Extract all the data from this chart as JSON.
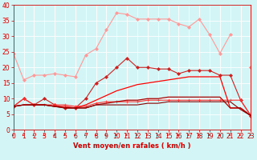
{
  "xlabel": "Vent moyen/en rafales ( km/h )",
  "x": [
    0,
    1,
    2,
    3,
    4,
    5,
    6,
    7,
    8,
    9,
    10,
    11,
    12,
    13,
    14,
    15,
    16,
    17,
    18,
    19,
    20,
    21,
    22,
    23
  ],
  "series": [
    {
      "color": "#ff9999",
      "marker": "D",
      "markersize": 2,
      "linewidth": 0.8,
      "values": [
        24.5,
        16.0,
        17.5,
        17.5,
        18.0,
        17.5,
        17.0,
        24.0,
        26.0,
        32.0,
        37.5,
        37.0,
        35.5,
        35.5,
        35.5,
        35.5,
        34.0,
        33.0,
        35.5,
        30.5,
        24.5,
        30.5,
        null,
        20.0
      ]
    },
    {
      "color": "#ffbbbb",
      "marker": null,
      "markersize": 0,
      "linewidth": 0.9,
      "values": [
        7.5,
        null,
        null,
        null,
        null,
        null,
        null,
        null,
        null,
        null,
        null,
        null,
        null,
        null,
        null,
        null,
        null,
        null,
        null,
        null,
        null,
        null,
        null,
        20.0
      ]
    },
    {
      "color": "#ff8888",
      "marker": "D",
      "markersize": 2,
      "linewidth": 0.8,
      "values": [
        null,
        null,
        null,
        null,
        null,
        null,
        null,
        null,
        null,
        null,
        null,
        null,
        null,
        null,
        null,
        null,
        null,
        null,
        null,
        null,
        null,
        null,
        null,
        20.0
      ]
    },
    {
      "color": "#cc2222",
      "marker": "D",
      "markersize": 2,
      "linewidth": 0.8,
      "values": [
        7.5,
        10.0,
        8.0,
        10.0,
        8.0,
        7.0,
        7.0,
        10.0,
        15.0,
        17.0,
        20.0,
        23.0,
        20.0,
        20.0,
        19.5,
        19.5,
        18.0,
        19.0,
        19.0,
        19.0,
        17.5,
        17.5,
        9.5,
        4.5
      ]
    },
    {
      "color": "#ff3333",
      "marker": "+",
      "markersize": 3,
      "linewidth": 0.8,
      "values": [
        7.5,
        10.0,
        8.0,
        8.0,
        8.0,
        8.0,
        7.5,
        7.5,
        8.5,
        9.0,
        9.0,
        9.0,
        9.0,
        9.5,
        9.5,
        9.5,
        9.5,
        9.5,
        9.5,
        9.5,
        9.5,
        9.5,
        9.5,
        4.5
      ]
    },
    {
      "color": "#ff0000",
      "marker": null,
      "markersize": 0,
      "linewidth": 0.9,
      "values": [
        7.5,
        8.0,
        8.0,
        8.0,
        7.5,
        7.5,
        7.0,
        8.0,
        9.5,
        11.0,
        12.5,
        13.5,
        14.5,
        15.0,
        15.5,
        16.0,
        16.5,
        17.0,
        17.0,
        17.0,
        17.0,
        7.0,
        7.0,
        4.5
      ]
    },
    {
      "color": "#aa0000",
      "marker": null,
      "markersize": 0,
      "linewidth": 0.9,
      "values": [
        7.5,
        8.0,
        8.0,
        8.0,
        7.5,
        7.0,
        7.0,
        7.0,
        8.0,
        8.5,
        9.0,
        9.5,
        9.5,
        10.0,
        10.0,
        10.5,
        10.5,
        10.5,
        10.5,
        10.5,
        10.5,
        7.0,
        7.0,
        4.5
      ]
    },
    {
      "color": "#880000",
      "marker": null,
      "markersize": 0,
      "linewidth": 0.8,
      "values": [
        7.5,
        8.0,
        8.0,
        8.0,
        7.5,
        7.0,
        7.0,
        7.0,
        8.0,
        8.0,
        8.0,
        8.0,
        8.0,
        8.5,
        8.5,
        9.0,
        9.0,
        9.0,
        9.0,
        9.0,
        9.0,
        9.0,
        6.5,
        4.5
      ]
    }
  ],
  "background_color": "#d4f5f5",
  "grid_color": "#ffffff",
  "ylim": [
    0,
    40
  ],
  "xlim": [
    0,
    23
  ],
  "yticks": [
    0,
    5,
    10,
    15,
    20,
    25,
    30,
    35,
    40
  ],
  "xticks": [
    0,
    1,
    2,
    3,
    4,
    5,
    6,
    7,
    8,
    9,
    10,
    11,
    12,
    13,
    14,
    15,
    16,
    17,
    18,
    19,
    20,
    21,
    22,
    23
  ],
  "tick_color": "#cc0000",
  "label_color": "#cc0000",
  "arrow_color": "#cc0000",
  "axis_label_fontsize": 5.5,
  "xlabel_fontsize": 6.0
}
